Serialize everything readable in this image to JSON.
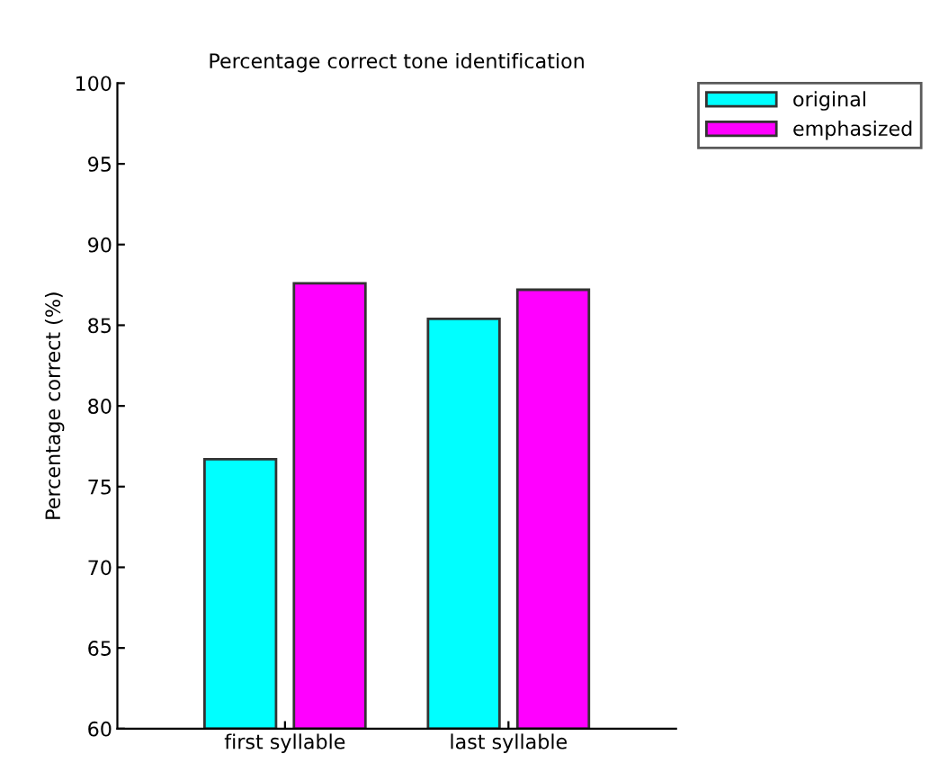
{
  "chart_data": {
    "type": "bar",
    "title": "Percentage correct tone identification",
    "ylabel": "Percentage correct (%)",
    "categories": [
      "first syllable",
      "last syllable"
    ],
    "series": [
      {
        "name": "original",
        "color": "#00ffff",
        "values": [
          76.7,
          85.4
        ]
      },
      {
        "name": "emphasized",
        "color": "#ff00ff",
        "values": [
          87.6,
          87.2
        ]
      }
    ],
    "ylim": [
      60,
      100
    ],
    "yticks": [
      60,
      65,
      70,
      75,
      80,
      85,
      90,
      95,
      100
    ],
    "grid": false,
    "legend": "top right"
  }
}
